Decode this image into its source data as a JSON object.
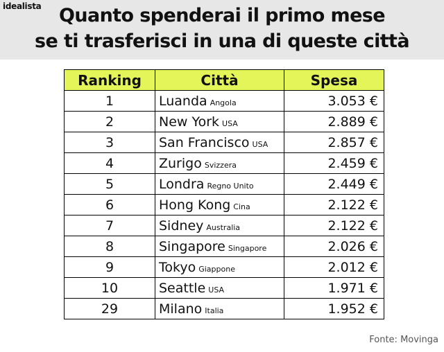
{
  "brand": "idealista",
  "title_line1": "Quanto spenderai il primo mese",
  "title_line2": "se ti trasferisci in una di queste città",
  "table": {
    "headers": [
      "Ranking",
      "Città",
      "Spesa"
    ],
    "rows": [
      {
        "rank": "1",
        "city": "Luanda",
        "country": "Angola",
        "spesa": "3.053 €"
      },
      {
        "rank": "2",
        "city": "New York",
        "country": "USA",
        "spesa": "2.889 €"
      },
      {
        "rank": "3",
        "city": "San Francisco",
        "country": "USA",
        "spesa": "2.857 €"
      },
      {
        "rank": "4",
        "city": "Zurigo",
        "country": "Svizzera",
        "spesa": "2.459 €"
      },
      {
        "rank": "5",
        "city": "Londra",
        "country": "Regno Unito",
        "spesa": "2.449 €"
      },
      {
        "rank": "6",
        "city": "Hong Kong",
        "country": "Cina",
        "spesa": "2.122 €"
      },
      {
        "rank": "7",
        "city": "Sidney",
        "country": "Australia",
        "spesa": "2.122 €"
      },
      {
        "rank": "8",
        "city": "Singapore",
        "country": "Singapore",
        "spesa": "2.026 €"
      },
      {
        "rank": "9",
        "city": "Tokyo",
        "country": "Giappone",
        "spesa": "2.012 €"
      },
      {
        "rank": "10",
        "city": "Seattle",
        "country": "USA",
        "spesa": "1.971 €"
      },
      {
        "rank": "29",
        "city": "Milano",
        "country": "Italia",
        "spesa": "1.952 €"
      }
    ]
  },
  "source": "Fonte: Movinga",
  "colors": {
    "header_bg": "#e7e7e7",
    "table_header_bg": "#e4f55a"
  }
}
